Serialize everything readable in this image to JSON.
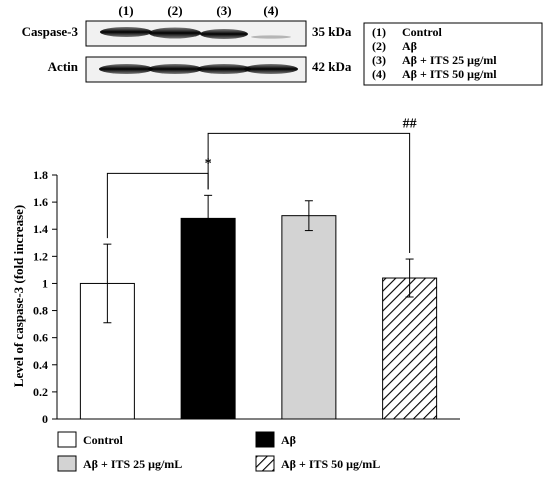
{
  "blot": {
    "lanes": [
      "(1)",
      "(2)",
      "(3)",
      "(4)"
    ],
    "rows": [
      {
        "name": "Caspase-3",
        "size": "35 kDa"
      },
      {
        "name": "Actin",
        "size": "42 kDa"
      }
    ],
    "key": [
      {
        "num": "(1)",
        "label": "Control"
      },
      {
        "num": "(2)",
        "label": "Aβ"
      },
      {
        "num": "(3)",
        "label": "Aβ + ITS 25 μg/ml"
      },
      {
        "num": "(4)",
        "label": "Aβ + ITS 50 μg/ml"
      }
    ]
  },
  "chart_data": {
    "type": "bar",
    "categories": [
      "Control",
      "Aβ",
      "Aβ + ITS 25 μg/mL",
      "Aβ + ITS 50 μg/mL"
    ],
    "values": [
      1.0,
      1.48,
      1.5,
      1.04
    ],
    "errors": [
      0.29,
      0.17,
      0.11,
      0.14
    ],
    "fills": [
      "#ffffff",
      "#000000",
      "#d3d3d3",
      "hatch"
    ],
    "ylabel": "Level of caspase-3 (fold increase)",
    "ylim": [
      0,
      1.8
    ],
    "yticks": [
      "0",
      "0.2",
      "0.4",
      "0.6",
      "0.8",
      "1",
      "1.2",
      "1.4",
      "1.6",
      "1.8"
    ],
    "grid": false,
    "legend_position": "bottom",
    "legend": [
      "Control",
      "Aβ",
      "Aβ + ITS 25 μg/mL",
      "Aβ + ITS 50 μg/mL"
    ],
    "annotations": [
      {
        "from": 0,
        "to": 1,
        "label": "*"
      },
      {
        "from": 1,
        "to": 3,
        "label": "##"
      }
    ]
  }
}
